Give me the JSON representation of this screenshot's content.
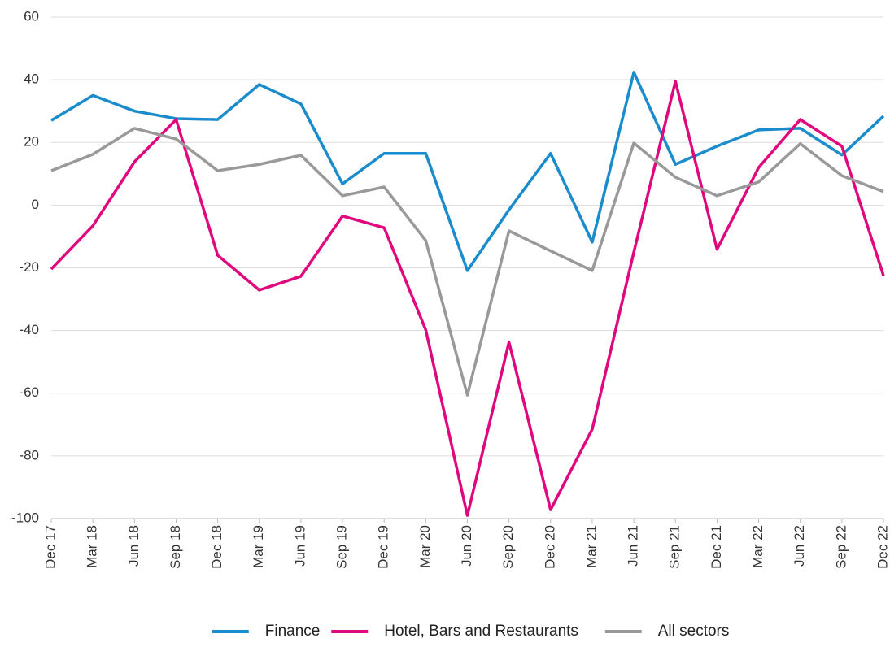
{
  "chart_data": {
    "type": "line",
    "categories": [
      "Dec 17",
      "Mar 18",
      "Jun 18",
      "Sep 18",
      "Dec 18",
      "Mar 19",
      "Jun 19",
      "Sep 19",
      "Dec 19",
      "Mar 20",
      "Jun 20",
      "Sep 20",
      "Dec 20",
      "Mar 21",
      "Jun 21",
      "Sep 21",
      "Dec 21",
      "Mar 22",
      "Jun 22",
      "Sep 22",
      "Dec 22"
    ],
    "series": [
      {
        "name": "Finance",
        "color": "#1a8ccc",
        "values": [
          27,
          35,
          30,
          27.6,
          27.3,
          38.5,
          32.3,
          6.8,
          16.5,
          16.5,
          -20.9,
          -1.5,
          16.5,
          -11.8,
          42.4,
          13,
          18.8,
          24,
          24.5,
          16,
          28.4
        ]
      },
      {
        "name": "Hotel, Bars and Restaurants",
        "color": "#e0087e",
        "values": [
          -20.4,
          -6.6,
          13.8,
          27.3,
          -16,
          -27.1,
          -22.7,
          -3.5,
          -7.2,
          -39.8,
          -99,
          -43.7,
          -97.2,
          -71.5,
          -15,
          39.5,
          -14.1,
          12,
          27.3,
          18.8,
          -22.5
        ]
      },
      {
        "name": "All sectors",
        "color": "#999999",
        "values": [
          11,
          16.2,
          24.5,
          21.1,
          11,
          13,
          15.9,
          3,
          5.8,
          -11.3,
          -60.6,
          -8.2,
          -14.6,
          -20.9,
          19.8,
          8.9,
          3,
          7.4,
          19.6,
          9.4,
          4.3
        ]
      }
    ],
    "ylim": [
      -100,
      60
    ],
    "yticks": [
      -100,
      -80,
      -60,
      -40,
      -20,
      0,
      20,
      40,
      60
    ],
    "grid": true,
    "legend": "bottom"
  }
}
